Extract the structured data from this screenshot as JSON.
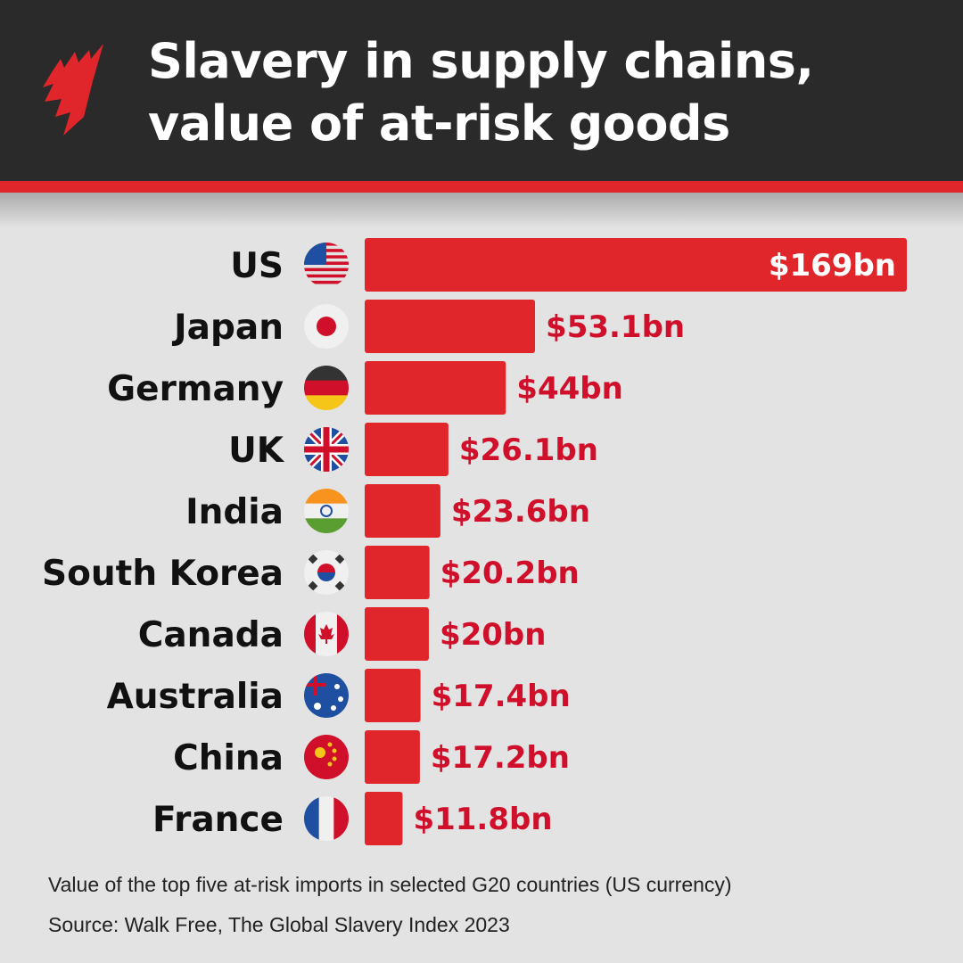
{
  "header": {
    "title_line1": "Slavery in supply chains,",
    "title_line2": "value of at-risk goods",
    "logo_color": "#e0262a"
  },
  "chart_data": {
    "type": "bar",
    "orientation": "horizontal",
    "title": "Slavery in supply chains, value of at-risk goods",
    "categories": [
      "US",
      "Japan",
      "Germany",
      "UK",
      "India",
      "South Korea",
      "Canada",
      "Australia",
      "China",
      "France"
    ],
    "flags": [
      "us-flag-icon",
      "japan-flag-icon",
      "germany-flag-icon",
      "uk-flag-icon",
      "india-flag-icon",
      "south-korea-flag-icon",
      "canada-flag-icon",
      "australia-flag-icon",
      "china-flag-icon",
      "france-flag-icon"
    ],
    "values": [
      169,
      53.1,
      44,
      26.1,
      23.6,
      20.2,
      20,
      17.4,
      17.2,
      11.8
    ],
    "labels": [
      "$169bn",
      "$53.1bn",
      "$44bn",
      "$26.1bn",
      "$23.6bn",
      "$20.2bn",
      "$20bn",
      "$17.4bn",
      "$17.2bn",
      "$11.8bn"
    ],
    "unit": "US$ billions",
    "bar_color": "#e0262a",
    "label_color": "#d0102a",
    "grid": false
  },
  "footer": {
    "note": "Value of the top five at-risk imports in selected G20 countries (US currency)",
    "source": "Source: Walk Free, The Global Slavery Index 2023"
  }
}
